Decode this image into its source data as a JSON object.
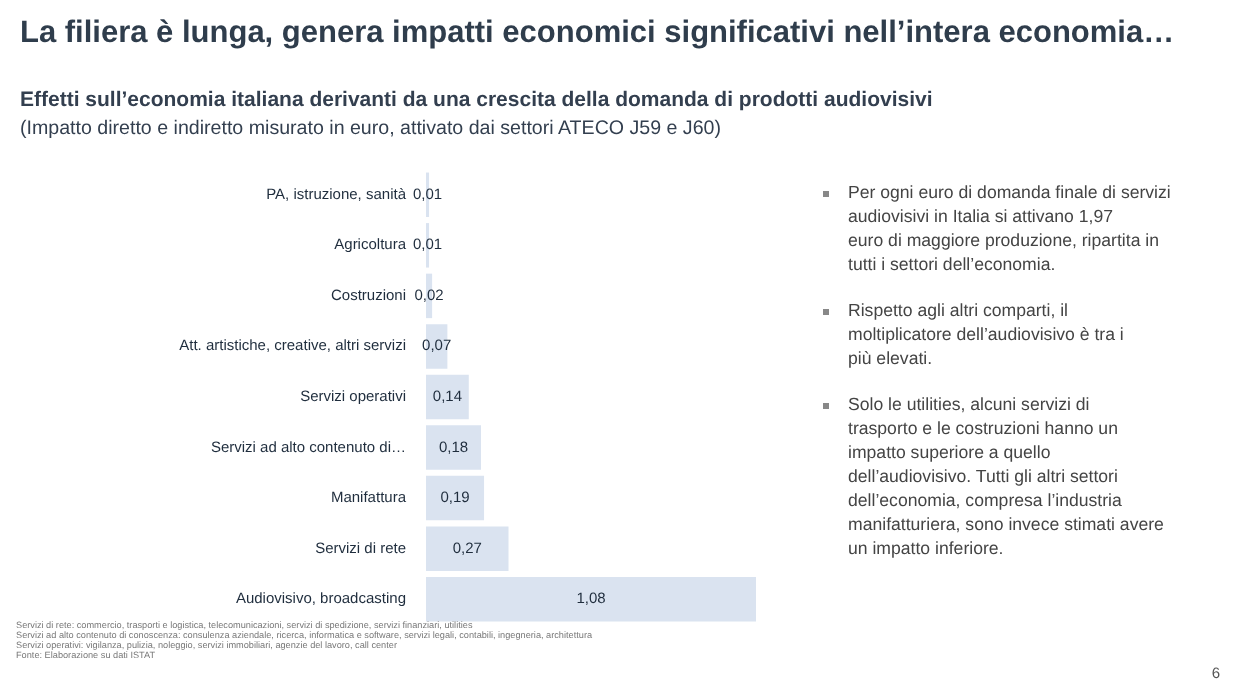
{
  "chart_data": {
    "type": "bar",
    "orientation": "horizontal",
    "title": "La filiera è lunga, genera impatti economici significativi nell’intera economia…",
    "subtitle": "Effetti sull’economia italiana derivanti da una crescita della domanda di prodotti audiovisivi",
    "categories": [
      "PA, istruzione, sanità",
      "Agricoltura",
      "Costruzioni",
      "Att. artistiche, creative, altri servizi",
      "Servizi operativi",
      "Servizi ad alto contenuto di…",
      "Manifattura",
      "Servizi di rete",
      "Audiovisivo, broadcasting"
    ],
    "values": [
      0.01,
      0.01,
      0.02,
      0.07,
      0.14,
      0.18,
      0.19,
      0.27,
      1.08
    ],
    "value_labels": [
      "0,01",
      "0,01",
      "0,02",
      "0,07",
      "0,14",
      "0,18",
      "0,19",
      "0,27",
      "1,08"
    ],
    "color": "#dae3f0",
    "annotations": [
      "(Impatto diretto e indiretto misurato in euro, attivato dai settori ATECO J59 e J60)",
      "Per ogni euro di domanda finale di servizi audiovisivi in Italia si attivano 1,97 euro di maggiore produzione, ripartita in tutti i settori dell’economia.",
      "Rispetto agli altri comparti, il moltiplicatore dell’audiovisivo è tra i più elevati.",
      "Solo le utilities, alcuni servizi di trasporto e le costruzioni hanno un impatto superiore a quello dell’audiovisivo. Tutti gli altri settori dell’economia, compresa l’industria manifatturiera, sono invece stimati avere un impatto inferiore.",
      "Servizi di rete: commercio, trasporti e logistica, telecomunicazioni, servizi di spedizione, servizi finanziari, utilities",
      "Servizi ad alto contenuto di conoscenza: consulenza aziendale, ricerca, informatica e software, servizi legali, contabili, ingegneria, architettura",
      "Servizi operativi: vigilanza, pulizia, noleggio, servizi immobiliari, agenzie del lavoro, call center",
      "Fonte: Elaborazione su dati ISTAT",
      "6"
    ]
  }
}
